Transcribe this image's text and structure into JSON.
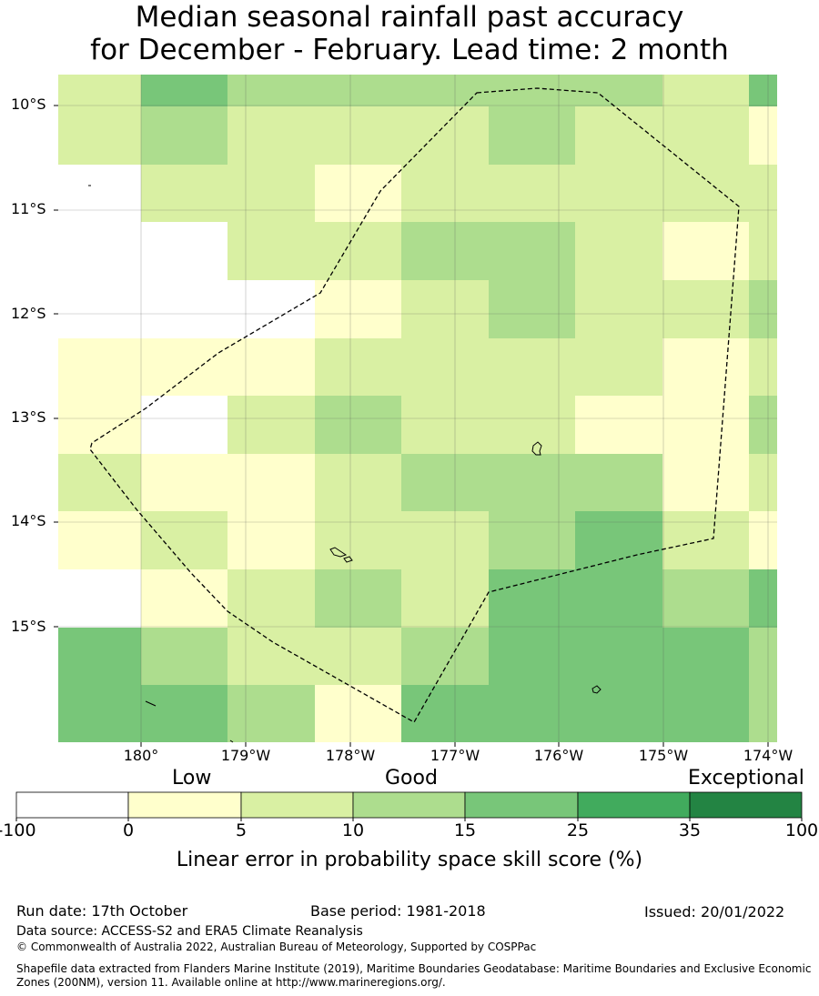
{
  "title": {
    "line1": "Median seasonal rainfall past accuracy",
    "line2": "for December - February. Lead time: 2 month"
  },
  "map": {
    "latitude_labels": [
      "10°S",
      "11°S",
      "12°S",
      "13°S",
      "14°S",
      "15°S"
    ],
    "longitude_labels": [
      "180°",
      "179°W",
      "178°W",
      "177°W",
      "176°W",
      "175°W",
      "174°W"
    ],
    "category_colors": [
      "#ffffff",
      "#ffffcc",
      "#d9f0a3",
      "#addd8e",
      "#78c679",
      "#41ab5d",
      "#238443"
    ],
    "grid_note": "rows north to south, columns west to east; each value is a colour class index 0-6",
    "cells": [
      [
        2,
        4,
        3,
        3,
        3,
        3,
        3,
        2,
        4
      ],
      [
        2,
        3,
        2,
        2,
        2,
        3,
        2,
        2,
        1
      ],
      [
        0,
        2,
        2,
        1,
        2,
        2,
        2,
        2,
        2
      ],
      [
        0,
        0,
        2,
        2,
        3,
        3,
        2,
        1,
        2
      ],
      [
        0,
        0,
        0,
        1,
        2,
        3,
        2,
        2,
        3
      ],
      [
        1,
        1,
        1,
        2,
        2,
        2,
        2,
        1,
        2
      ],
      [
        1,
        0,
        2,
        3,
        2,
        2,
        1,
        1,
        3
      ],
      [
        2,
        1,
        1,
        2,
        3,
        3,
        3,
        1,
        2
      ],
      [
        1,
        2,
        1,
        2,
        2,
        3,
        4,
        2,
        1
      ],
      [
        0,
        1,
        2,
        3,
        2,
        4,
        4,
        3,
        4
      ],
      [
        4,
        3,
        2,
        2,
        3,
        4,
        4,
        4,
        3
      ],
      [
        4,
        4,
        3,
        1,
        4,
        4,
        4,
        4,
        3
      ]
    ]
  },
  "colorbar": {
    "categories": [
      "Low",
      "Good",
      "Exceptional"
    ],
    "ticks": [
      "-100",
      "0",
      "5",
      "10",
      "15",
      "25",
      "35",
      "100"
    ],
    "label": "Linear error in probability space skill score (%)"
  },
  "footer": {
    "run_date": "Run date: 17th October",
    "base_period": "Base period: 1981-2018",
    "issued": "Issued: 20/01/2022",
    "data_source": "Data source: ACCESS-S2 and ERA5 Climate Reanalysis",
    "copyright": "© Commonwealth of Australia 2022, Australian Bureau of Meteorology, Supported by COSPPac",
    "shapefile_line1": "Shapefile data extracted from Flanders Marine Institute (2019), Maritime Boundaries Geodatabase: Maritime Boundaries and Exclusive Economic",
    "shapefile_line2": "Zones (200NM), version 11. Available online at http://www.marineregions.org/."
  }
}
